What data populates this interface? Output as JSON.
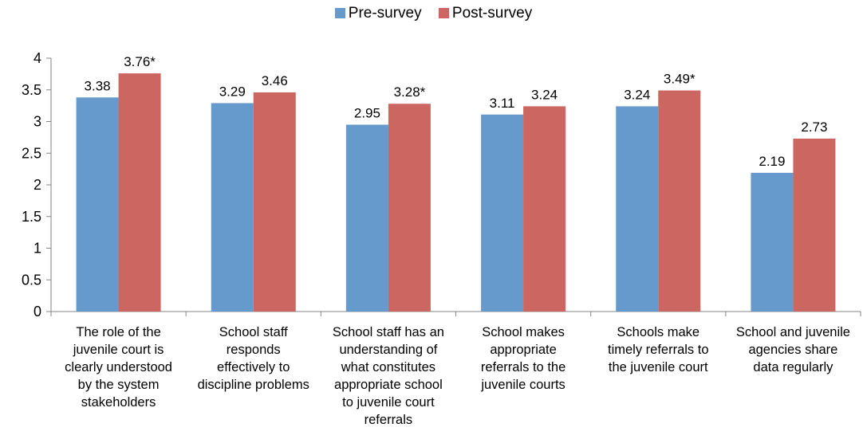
{
  "chart_data": {
    "type": "bar",
    "categories": [
      [
        "The role of the",
        "juvenile court is",
        "clearly understood",
        "by the system",
        "stakeholders"
      ],
      [
        "School staff",
        "responds",
        "effectively to",
        "discipline problems"
      ],
      [
        "School staff has an",
        "understanding of",
        "what constitutes",
        "appropriate school",
        "to juvenile court",
        "referrals"
      ],
      [
        "School makes",
        "appropriate",
        "referrals to the",
        "juvenile courts"
      ],
      [
        "Schools make",
        "timely referrals to",
        "the juvenile court"
      ],
      [
        "School and juvenile",
        "agencies share",
        "data regularly"
      ]
    ],
    "series": [
      {
        "name": "Pre-survey",
        "color": "#6699cc",
        "values": [
          3.38,
          3.29,
          2.95,
          3.11,
          3.24,
          2.19
        ],
        "labels": [
          "3.38",
          "3.29",
          "2.95",
          "3.11",
          "3.24",
          "2.19"
        ]
      },
      {
        "name": "Post-survey",
        "color": "#cc6660",
        "values": [
          3.76,
          3.46,
          3.28,
          3.24,
          3.49,
          2.73
        ],
        "labels": [
          "3.76*",
          "3.46",
          "3.28*",
          "3.24",
          "3.49*",
          "2.73"
        ]
      }
    ],
    "yticks": [
      "0",
      "0.5",
      "1",
      "1.5",
      "2",
      "2.5",
      "3",
      "3.5",
      "4"
    ],
    "ylim": [
      0,
      4
    ],
    "grid": false,
    "legend_position": "top-center"
  }
}
